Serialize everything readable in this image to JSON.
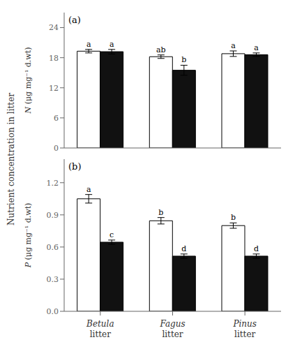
{
  "y_label": "Nutrient concentration in litter",
  "chart_data": [
    {
      "type": "bar",
      "title": "(a)",
      "y_label": "N (μg mg⁻¹ d.wt)",
      "categories": [
        "Betula litter",
        "Fagus litter",
        "Pinus litter"
      ],
      "series": [
        {
          "color": "#ffffff",
          "values": [
            19.3,
            18.2,
            18.8
          ],
          "errors": [
            0.35,
            0.35,
            0.55
          ],
          "letters": [
            "a",
            "ab",
            "a"
          ]
        },
        {
          "color": "#111111",
          "values": [
            19.2,
            15.5,
            18.6
          ],
          "errors": [
            0.45,
            1.0,
            0.35
          ],
          "letters": [
            "a",
            "b",
            "a"
          ]
        }
      ],
      "edge_color": "#000000",
      "ylim": [
        0,
        27
      ],
      "yticks": [
        0,
        6,
        12,
        18,
        24
      ],
      "grid": false,
      "tick_labels": "y"
    },
    {
      "type": "bar",
      "title": "(b)",
      "y_label": "P (μg mg⁻¹ d.wt)",
      "categories": [
        "Betula litter",
        "Fagus litter",
        "Pinus litter"
      ],
      "series": [
        {
          "color": "#ffffff",
          "values": [
            1.05,
            0.845,
            0.8
          ],
          "errors": [
            0.04,
            0.03,
            0.025
          ],
          "letters": [
            "a",
            "b",
            "b"
          ]
        },
        {
          "color": "#111111",
          "values": [
            0.645,
            0.515,
            0.515
          ],
          "errors": [
            0.02,
            0.02,
            0.02
          ],
          "letters": [
            "c",
            "d",
            "d"
          ]
        }
      ],
      "edge_color": "#000000",
      "ylim": [
        0.0,
        1.42
      ],
      "yticks": [
        {
          "value": 0.0,
          "label": "0.0"
        },
        0.3,
        0.6,
        0.9,
        1.2
      ],
      "grid": false
    }
  ]
}
